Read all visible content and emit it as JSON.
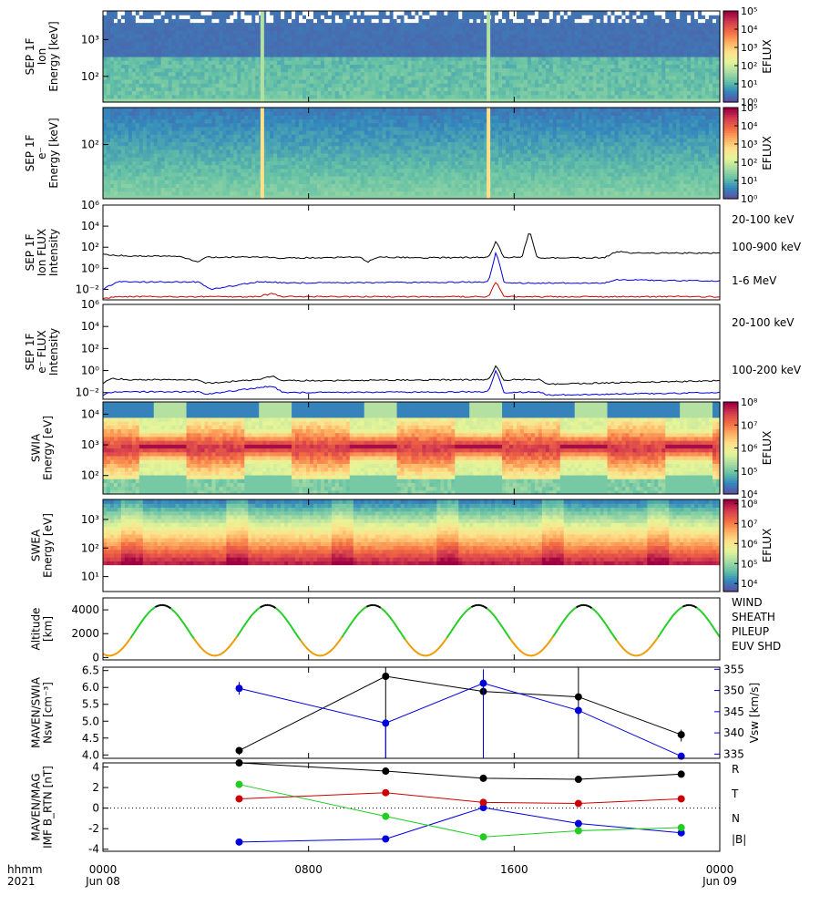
{
  "colors": {
    "black": "#000000",
    "blue": "#0000dd",
    "red": "#cc0000",
    "green": "#22cc22",
    "orange": "#ee9900",
    "spectral": [
      "#5e4fa2",
      "#3288bd",
      "#66c2a5",
      "#abdda4",
      "#e6f598",
      "#fee08b",
      "#fdae61",
      "#f46d43",
      "#d53e4f",
      "#9e0142"
    ]
  },
  "time_axis": {
    "corner_top": "hhmm",
    "corner_bottom": "2021",
    "ticks": [
      {
        "label": "0000",
        "hour": 0,
        "sub": "Jun 08"
      },
      {
        "label": "0800",
        "hour": 8,
        "sub": ""
      },
      {
        "label": "1600",
        "hour": 16,
        "sub": ""
      },
      {
        "label": "0000",
        "hour": 24,
        "sub": "Jun 09"
      }
    ]
  },
  "chart_data": [
    {
      "type": "heatmap",
      "ylabel": [
        "SEP 1F",
        "Ion",
        "Energy [keV]"
      ],
      "yscale": "log",
      "yrange": [
        20,
        6000
      ],
      "yticks": [
        {
          "v": 100,
          "label": "10²"
        },
        {
          "v": 1000,
          "label": "10³"
        }
      ],
      "colorbar": {
        "label": "EFLUX",
        "range_exp": [
          0,
          5
        ],
        "ticks": [
          "10⁰",
          "10¹",
          "10²",
          "10³",
          "10⁴",
          "10⁵"
        ]
      },
      "spikes": [
        {
          "hour": 6.2,
          "level": 0.35
        },
        {
          "hour": 15.0,
          "level": 0.35
        }
      ]
    },
    {
      "type": "heatmap",
      "ylabel": [
        "SEP 1F",
        "e⁻",
        "Energy [keV]"
      ],
      "yscale": "log",
      "yrange": [
        20,
        300
      ],
      "yticks": [
        {
          "v": 100,
          "label": "10²"
        }
      ],
      "colorbar": {
        "label": "EFLUX",
        "range_exp": [
          0,
          5
        ],
        "ticks": [
          "10⁰",
          "10¹",
          "10²",
          "10³",
          "10⁴",
          "10⁵"
        ]
      },
      "spikes": [
        {
          "hour": 6.2,
          "level": 0.55
        },
        {
          "hour": 15.0,
          "level": 0.55
        }
      ]
    },
    {
      "type": "line",
      "ylabel": [
        "SEP 1F",
        "Ion FLUX",
        "Intensity"
      ],
      "yscale": "log",
      "yrange_exp": [
        -3,
        6
      ],
      "yticks": [
        "10⁻²",
        "10⁰",
        "10²",
        "10⁴",
        "10⁶"
      ],
      "series": [
        {
          "name": "20-100 keV",
          "color": "black",
          "base": 1.1,
          "x": [
            0,
            1,
            3,
            3.7,
            4,
            6,
            6.6,
            7,
            10,
            10.3,
            10.7,
            11,
            12.5,
            13,
            15,
            15.3,
            15.6,
            16,
            16.3,
            16.6,
            16.9,
            17.5,
            19.5,
            20,
            20.5,
            24
          ],
          "y": [
            20,
            15,
            14,
            4,
            11,
            12,
            10,
            9,
            12,
            4,
            11,
            11,
            10,
            10,
            11,
            400,
            10,
            11,
            11,
            4000,
            9,
            10,
            10,
            40,
            28,
            28
          ]
        },
        {
          "name": "100-900 keV",
          "color": "blue",
          "base": 0.05,
          "x": [
            0,
            0.6,
            1,
            3.7,
            4.2,
            6,
            6.6,
            7,
            15,
            15.3,
            15.6,
            16,
            19.5,
            20,
            24
          ],
          "y": [
            0.01,
            0.06,
            0.05,
            0.05,
            0.01,
            0.05,
            0.05,
            0.04,
            0.05,
            40,
            0.05,
            0.04,
            0.04,
            0.08,
            0.06
          ]
        },
        {
          "name": "1-6 MeV",
          "color": "red",
          "base": 0.0015,
          "x": [
            0,
            0.5,
            6,
            6.6,
            7,
            15,
            15.3,
            15.6,
            24
          ],
          "y": [
            0.0012,
            0.002,
            0.002,
            0.004,
            0.002,
            0.002,
            0.06,
            0.002,
            0.002
          ]
        }
      ]
    },
    {
      "type": "line",
      "ylabel": [
        "SEP 1F",
        "e⁻ FLUX",
        "Intensity"
      ],
      "yscale": "log",
      "yrange_exp": [
        -2.6,
        6
      ],
      "yticks": [
        "10⁻²",
        "10⁰",
        "10²",
        "10⁴",
        "10⁶"
      ],
      "series": [
        {
          "name": "20-100 keV",
          "color": "black",
          "base": 0.15,
          "x": [
            0,
            0.3,
            1,
            3.7,
            4,
            6,
            6.6,
            7,
            15,
            15.3,
            15.6,
            16,
            17,
            17.3,
            24
          ],
          "y": [
            0.06,
            0.2,
            0.15,
            0.15,
            0.07,
            0.15,
            0.3,
            0.12,
            0.15,
            3,
            0.12,
            0.15,
            0.15,
            0.06,
            0.12
          ]
        },
        {
          "name": "100-200 keV",
          "color": "blue",
          "base": 0.011,
          "x": [
            0,
            0.4,
            3.7,
            4,
            6.6,
            7,
            15,
            15.3,
            15.6,
            17,
            17.3,
            24
          ],
          "y": [
            0.006,
            0.012,
            0.012,
            0.007,
            0.04,
            0.01,
            0.012,
            1.2,
            0.01,
            0.012,
            0.006,
            0.01
          ]
        }
      ]
    },
    {
      "type": "heatmap",
      "ylabel": [
        "SWIA",
        "Energy [eV]"
      ],
      "yscale": "log",
      "yrange": [
        25,
        25000
      ],
      "yticks": [
        {
          "v": 100,
          "label": "10²"
        },
        {
          "v": 1000,
          "label": "10³"
        },
        {
          "v": 10000,
          "label": "10⁴"
        }
      ],
      "colorbar": {
        "label": "EFLUX",
        "range_exp": [
          4,
          8
        ],
        "ticks": [
          "10⁴",
          "10⁵",
          "10⁶",
          "10⁷",
          "10⁸"
        ]
      },
      "orbit_phase0_hours": 0.7,
      "orbit_hours": 4.1
    },
    {
      "type": "heatmap",
      "ylabel": [
        "SWEA",
        "Energy [eV]"
      ],
      "yscale": "log",
      "yrange": [
        3,
        5000
      ],
      "yticks": [
        {
          "v": 10,
          "label": "10¹"
        },
        {
          "v": 100,
          "label": "10²"
        },
        {
          "v": 1000,
          "label": "10³"
        }
      ],
      "colorbar": {
        "label": "EFLUX",
        "range_exp": [
          3.6,
          8.2
        ],
        "ticks": [
          "10⁴",
          "10⁵",
          "10⁶",
          "10⁷",
          "10⁸"
        ]
      },
      "orbit_phase0_hours": 0.7,
      "orbit_hours": 4.1
    },
    {
      "type": "line",
      "ylabel": [
        "Altitude",
        "[km]"
      ],
      "yrange": [
        -200,
        5000
      ],
      "yticks": [
        0,
        2000,
        4000
      ],
      "orbit": {
        "period_hours": 4.1,
        "periapsis_hours": [
          0.25,
          4.35,
          8.45,
          12.55,
          16.65,
          20.75
        ],
        "max_km": 4400,
        "min_km": 150
      },
      "legend": [
        {
          "name": "WIND",
          "color": "black"
        },
        {
          "name": "SHEATH",
          "color": "green"
        },
        {
          "name": "PILEUP",
          "color": "orange"
        },
        {
          "name": "EUV SHD",
          "color": "blue"
        }
      ]
    },
    {
      "type": "scatter",
      "ylabel": [
        "MAVEN/SWIA",
        "Nsw [cm⁻³]"
      ],
      "ylabel_right": "Vsw [km/s]",
      "yrange": [
        3.9,
        6.6
      ],
      "yticks": [
        4.0,
        4.5,
        5.0,
        5.5,
        6.0,
        6.5
      ],
      "yrange_right": [
        334,
        355.5
      ],
      "yticks_right": [
        335,
        340,
        345,
        350,
        355
      ],
      "series": [
        {
          "name": "Nsw",
          "color": "black",
          "x": [
            5.3,
            11.0,
            14.8,
            18.5,
            22.5
          ],
          "y": [
            4.13,
            6.33,
            5.88,
            5.72,
            4.6
          ],
          "err_low": [
            4.0,
            3.9,
            3.9,
            3.9,
            4.4
          ],
          "err_high": [
            4.2,
            6.6,
            5.95,
            6.6,
            4.75
          ]
        },
        {
          "name": "Vsw",
          "color": "blue",
          "x": [
            5.3,
            11.0,
            14.8,
            18.5,
            22.5
          ],
          "y": [
            350.5,
            342.3,
            351.7,
            345.3,
            334.5
          ],
          "err_low": [
            349,
            334,
            334,
            344,
            334
          ],
          "err_high": [
            352,
            343,
            355,
            346,
            335
          ]
        }
      ]
    },
    {
      "type": "scatter",
      "ylabel": [
        "MAVEN/MAG",
        "IMF B_RTN [nT]"
      ],
      "yrange": [
        -4.2,
        4.4
      ],
      "yticks": [
        -4,
        -2,
        0,
        2,
        4
      ],
      "zero_line": true,
      "series": [
        {
          "name": "R",
          "color": "blue",
          "x": [
            5.3,
            11.0,
            14.8,
            18.5,
            22.5
          ],
          "y": [
            -3.3,
            -3.0,
            0.05,
            -1.5,
            -2.4
          ]
        },
        {
          "name": "T",
          "color": "green",
          "x": [
            5.3,
            11.0,
            14.8,
            18.5,
            22.5
          ],
          "y": [
            2.3,
            -0.8,
            -2.8,
            -2.2,
            -1.9
          ]
        },
        {
          "name": "N",
          "color": "red",
          "x": [
            5.3,
            11.0,
            14.8,
            18.5,
            22.5
          ],
          "y": [
            0.9,
            1.5,
            0.55,
            0.45,
            0.9
          ]
        },
        {
          "name": "|B|",
          "color": "black",
          "x": [
            5.3,
            11.0,
            14.8,
            18.5,
            22.5
          ],
          "y": [
            4.4,
            3.6,
            2.9,
            2.8,
            3.3
          ]
        }
      ]
    }
  ]
}
